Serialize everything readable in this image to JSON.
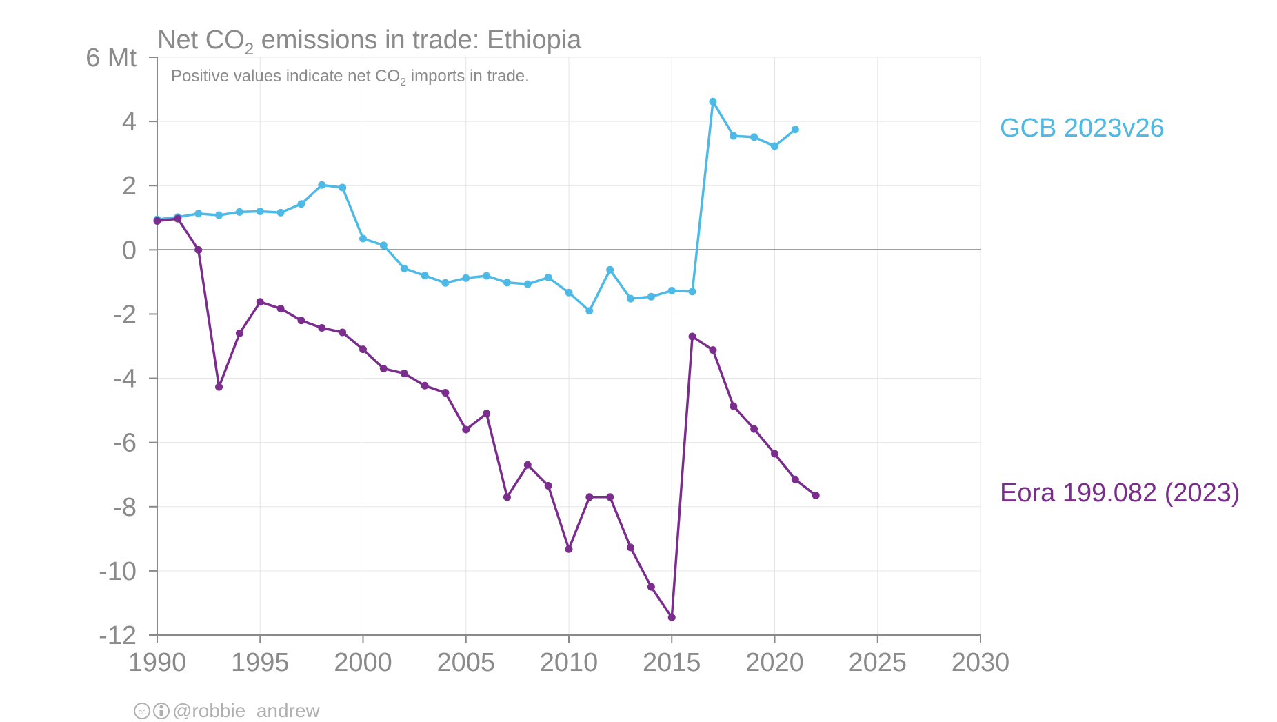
{
  "chart_data": {
    "type": "line",
    "title": "Net CO",
    "title_sub": "2",
    "title_rest": " emissions in trade: Ethiopia",
    "subtitle": "Positive values indicate net CO",
    "subtitle_sub": "2",
    "subtitle_rest": " imports in trade.",
    "xlim": [
      1990,
      2030
    ],
    "ylim": [
      -12,
      6
    ],
    "x_ticks": [
      1990,
      1995,
      2000,
      2005,
      2010,
      2015,
      2020,
      2025,
      2030
    ],
    "y_ticks": [
      6,
      4,
      2,
      0,
      -2,
      -4,
      -6,
      -8,
      -10,
      -12
    ],
    "y_tick_labels": [
      "6 Mt",
      "4",
      "2",
      "0",
      "-2",
      "-4",
      "-6",
      "-8",
      "-10",
      "-12"
    ],
    "grid": true,
    "series": [
      {
        "name": "GCB 2023v26",
        "color": "#4cb9e6",
        "x": [
          1990,
          1991,
          1992,
          1993,
          1994,
          1995,
          1996,
          1997,
          1998,
          1999,
          2000,
          2001,
          2002,
          2003,
          2004,
          2005,
          2006,
          2007,
          2008,
          2009,
          2010,
          2011,
          2012,
          2013,
          2014,
          2015,
          2016,
          2017,
          2018,
          2019,
          2020,
          2021
        ],
        "y": [
          0.95,
          1.02,
          1.13,
          1.08,
          1.18,
          1.2,
          1.16,
          1.43,
          2.02,
          1.94,
          0.35,
          0.14,
          -0.58,
          -0.8,
          -1.03,
          -0.88,
          -0.81,
          -1.02,
          -1.07,
          -0.86,
          -1.33,
          -1.9,
          -0.62,
          -1.52,
          -1.46,
          -1.27,
          -1.3,
          4.62,
          3.55,
          3.51,
          3.23,
          3.75
        ]
      },
      {
        "name": "Eora 199.082 (2023)",
        "color": "#7b2d8e",
        "x": [
          1990,
          1991,
          1992,
          1993,
          1994,
          1995,
          1996,
          1997,
          1998,
          1999,
          2000,
          2001,
          2002,
          2003,
          2004,
          2005,
          2006,
          2007,
          2008,
          2009,
          2010,
          2011,
          2012,
          2013,
          2014,
          2015,
          2016,
          2017,
          2018,
          2019,
          2020,
          2021,
          2022
        ],
        "y": [
          0.9,
          0.97,
          0.0,
          -4.27,
          -2.6,
          -1.62,
          -1.83,
          -2.2,
          -2.43,
          -2.57,
          -3.1,
          -3.7,
          -3.85,
          -4.23,
          -4.45,
          -5.6,
          -5.1,
          -7.7,
          -6.7,
          -7.35,
          -9.32,
          -7.7,
          -7.7,
          -9.27,
          -10.5,
          -11.45,
          -2.7,
          -3.12,
          -4.87,
          -5.58,
          -6.35,
          -7.15,
          -7.65
        ]
      }
    ],
    "credit": "@robbie_andrew"
  }
}
